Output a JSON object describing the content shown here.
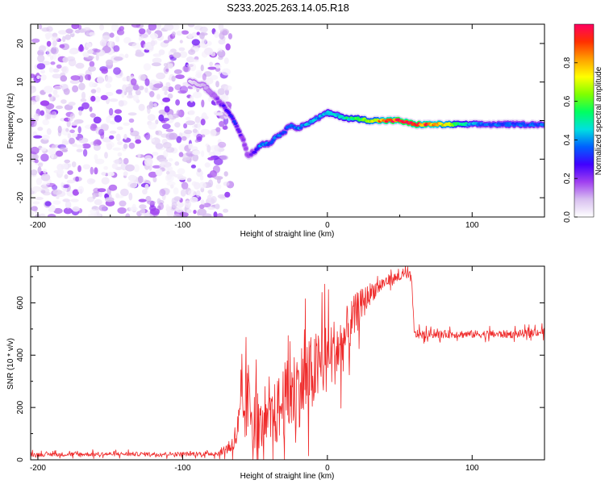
{
  "title": "S233.2025.263.14.05.R18",
  "chart_data": [
    {
      "type": "heatmap",
      "xlabel": "Height of straight line (km)",
      "ylabel": "Frequency (Hz)",
      "xlim": [
        -205,
        150
      ],
      "ylim": [
        -25,
        25
      ],
      "xticks": [
        -200,
        -100,
        0,
        100
      ],
      "yticks": [
        -20,
        -10,
        0,
        10,
        20
      ],
      "colorbar": {
        "label": "Normalized spectral amplitude",
        "range": [
          0,
          1
        ],
        "ticks": [
          0.0,
          0.2,
          0.4,
          0.6,
          0.8
        ],
        "colors": [
          "#ffffff",
          "#d8c0f0",
          "#a040f0",
          "#4000ff",
          "#0060ff",
          "#00e0e0",
          "#00ff60",
          "#80ff00",
          "#ffff00",
          "#ffa000",
          "#ff3000",
          "#ff0060"
        ]
      },
      "noise_region_x": [
        -205,
        -75
      ],
      "ridge": {
        "x": [
          -95,
          -85,
          -80,
          -75,
          -70,
          -65,
          -62,
          -58,
          -55,
          -50,
          -48,
          -45,
          -40,
          -35,
          -30,
          -25,
          -20,
          -15,
          -10,
          -5,
          0,
          5,
          10,
          15,
          20,
          30,
          40,
          50,
          60,
          70,
          80,
          90,
          100,
          110,
          120,
          130,
          140,
          150
        ],
        "freq": [
          10,
          9,
          7,
          5,
          3,
          0.5,
          -2,
          -5,
          -9,
          -8,
          -7,
          -6,
          -6,
          -4,
          -3,
          -1,
          -2,
          -1,
          0,
          1,
          2,
          1.5,
          1,
          0.5,
          0.5,
          0,
          0,
          0,
          -1,
          -1,
          -1,
          -1,
          -1,
          -1,
          -1,
          -1,
          -1,
          -1
        ],
        "amplitude": [
          0.05,
          0.1,
          0.15,
          0.2,
          0.25,
          0.3,
          0.25,
          0.2,
          0.15,
          0.25,
          0.35,
          0.4,
          0.35,
          0.35,
          0.35,
          0.35,
          0.4,
          0.4,
          0.4,
          0.4,
          0.45,
          0.45,
          0.45,
          0.5,
          0.55,
          0.7,
          0.85,
          0.95,
          0.9,
          0.85,
          0.75,
          0.55,
          0.4,
          0.35,
          0.35,
          0.35,
          0.35,
          0.35
        ]
      }
    },
    {
      "type": "line",
      "xlabel": "Height of straight line (km)",
      "ylabel": "SNR (10 * v/v)",
      "xlim": [
        -205,
        150
      ],
      "ylim": [
        0,
        740
      ],
      "xticks": [
        -200,
        -100,
        0,
        100
      ],
      "yticks": [
        0,
        200,
        400,
        600
      ],
      "series": [
        {
          "name": "SNR",
          "color": "#ef2a2a",
          "envelope_x": [
            -205,
            -150,
            -100,
            -75,
            -65,
            -60,
            -55,
            -50,
            -45,
            -40,
            -30,
            -20,
            -10,
            0,
            10,
            20,
            30,
            40,
            50,
            58,
            60,
            70,
            80,
            90,
            100,
            110,
            120,
            130,
            140,
            150
          ],
          "envelope_mean": [
            20,
            22,
            22,
            25,
            60,
            150,
            220,
            180,
            120,
            140,
            220,
            280,
            330,
            390,
            440,
            560,
            640,
            680,
            700,
            705,
            480,
            480,
            480,
            480,
            480,
            480,
            480,
            480,
            485,
            490
          ],
          "envelope_spread": [
            8,
            8,
            8,
            10,
            40,
            100,
            160,
            140,
            80,
            110,
            150,
            160,
            150,
            140,
            120,
            80,
            40,
            25,
            20,
            15,
            20,
            15,
            15,
            15,
            15,
            15,
            15,
            15,
            15,
            15
          ]
        }
      ]
    }
  ]
}
